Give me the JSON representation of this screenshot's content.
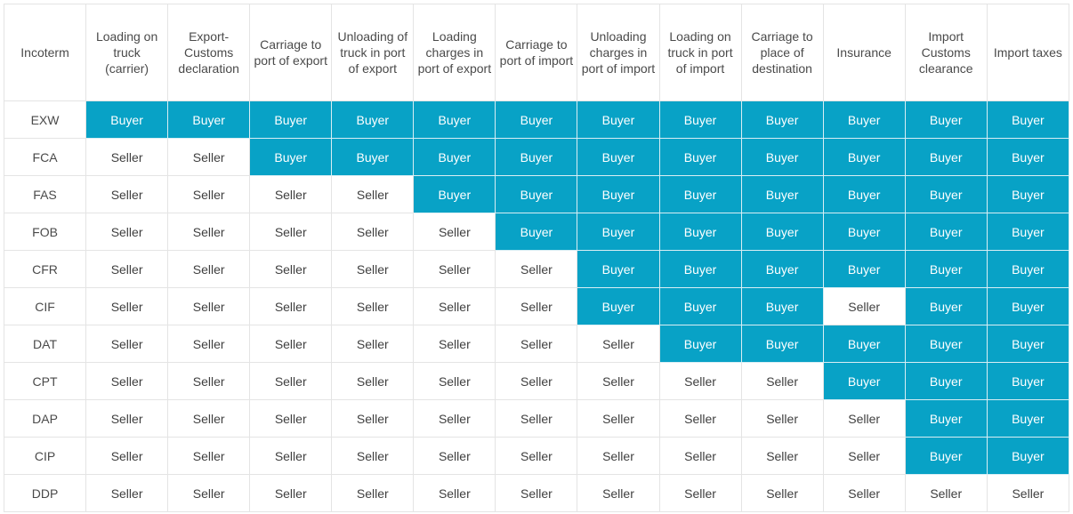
{
  "table": {
    "headers": [
      "Incoterm",
      "Loading on truck (carrier)",
      "Export-Customs declaration",
      "Carriage to port of export",
      "Unloading of truck in port of export",
      "Loading charges in port of export",
      "Carriage to port of import",
      "Unloading charges in port of import",
      "Loading on truck in port of import",
      "Carriage to place of destination",
      "Insurance",
      "Import Customs clearance",
      "Import taxes"
    ],
    "rows": [
      {
        "term": "EXW",
        "cells": [
          "Buyer",
          "Buyer",
          "Buyer",
          "Buyer",
          "Buyer",
          "Buyer",
          "Buyer",
          "Buyer",
          "Buyer",
          "Buyer",
          "Buyer",
          "Buyer"
        ]
      },
      {
        "term": "FCA",
        "cells": [
          "Seller",
          "Seller",
          "Buyer",
          "Buyer",
          "Buyer",
          "Buyer",
          "Buyer",
          "Buyer",
          "Buyer",
          "Buyer",
          "Buyer",
          "Buyer"
        ]
      },
      {
        "term": "FAS",
        "cells": [
          "Seller",
          "Seller",
          "Seller",
          "Seller",
          "Buyer",
          "Buyer",
          "Buyer",
          "Buyer",
          "Buyer",
          "Buyer",
          "Buyer",
          "Buyer"
        ]
      },
      {
        "term": "FOB",
        "cells": [
          "Seller",
          "Seller",
          "Seller",
          "Seller",
          "Seller",
          "Buyer",
          "Buyer",
          "Buyer",
          "Buyer",
          "Buyer",
          "Buyer",
          "Buyer"
        ]
      },
      {
        "term": "CFR",
        "cells": [
          "Seller",
          "Seller",
          "Seller",
          "Seller",
          "Seller",
          "Seller",
          "Buyer",
          "Buyer",
          "Buyer",
          "Buyer",
          "Buyer",
          "Buyer"
        ]
      },
      {
        "term": "CIF",
        "cells": [
          "Seller",
          "Seller",
          "Seller",
          "Seller",
          "Seller",
          "Seller",
          "Buyer",
          "Buyer",
          "Buyer",
          "Seller",
          "Buyer",
          "Buyer"
        ]
      },
      {
        "term": "DAT",
        "cells": [
          "Seller",
          "Seller",
          "Seller",
          "Seller",
          "Seller",
          "Seller",
          "Seller",
          "Buyer",
          "Buyer",
          "Buyer",
          "Buyer",
          "Buyer"
        ]
      },
      {
        "term": "CPT",
        "cells": [
          "Seller",
          "Seller",
          "Seller",
          "Seller",
          "Seller",
          "Seller",
          "Seller",
          "Seller",
          "Seller",
          "Buyer",
          "Buyer",
          "Buyer"
        ]
      },
      {
        "term": "DAP",
        "cells": [
          "Seller",
          "Seller",
          "Seller",
          "Seller",
          "Seller",
          "Seller",
          "Seller",
          "Seller",
          "Seller",
          "Seller",
          "Buyer",
          "Buyer"
        ]
      },
      {
        "term": "CIP",
        "cells": [
          "Seller",
          "Seller",
          "Seller",
          "Seller",
          "Seller",
          "Seller",
          "Seller",
          "Seller",
          "Seller",
          "Seller",
          "Buyer",
          "Buyer"
        ]
      },
      {
        "term": "DDP",
        "cells": [
          "Seller",
          "Seller",
          "Seller",
          "Seller",
          "Seller",
          "Seller",
          "Seller",
          "Seller",
          "Seller",
          "Seller",
          "Seller",
          "Seller"
        ]
      }
    ]
  },
  "colors": {
    "buyer_fill": "#08a2c6",
    "buyer_text": "#ffffff",
    "seller_fill": "#ffffff",
    "seller_text": "#3f3f3f",
    "grid_line": "#e4e4e4"
  }
}
